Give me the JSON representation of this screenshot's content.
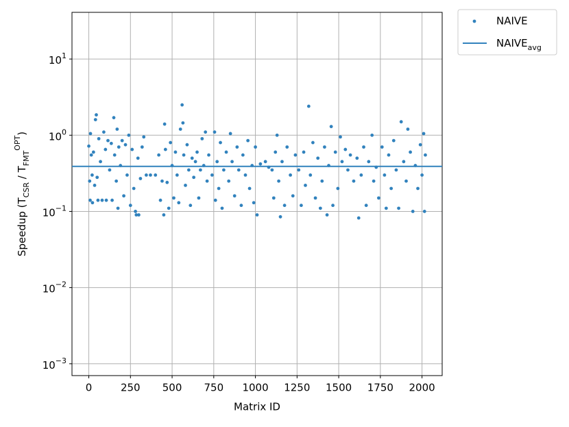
{
  "chart_data": {
    "type": "scatter",
    "x_label": "Matrix ID",
    "y_label": "Speedup (T_{CSR} / T_{FMT}^{OPT})",
    "xlim": [
      -101,
      2121
    ],
    "ylim": [
      0.0007,
      41
    ],
    "log_y": true,
    "grid": true,
    "legend": "outside upper right",
    "xticks": [
      0,
      250,
      500,
      750,
      1000,
      1250,
      1500,
      1750,
      2000
    ],
    "yticks": [
      {
        "value": 0.001,
        "label": "10^{−3}"
      },
      {
        "value": 0.01,
        "label": "10^{−2}"
      },
      {
        "value": 0.1,
        "label": "10^{−1}"
      },
      {
        "value": 1,
        "label": "10^{0}"
      },
      {
        "value": 10,
        "label": "10^{1}"
      }
    ],
    "series": [
      {
        "name": "NAIVE",
        "color": "#3182bd",
        "kind": "points",
        "x": [
          0,
          5,
          8,
          10,
          15,
          20,
          22,
          28,
          35,
          40,
          45,
          50,
          55,
          60,
          70,
          80,
          90,
          100,
          105,
          115,
          125,
          135,
          140,
          150,
          155,
          165,
          170,
          175,
          180,
          190,
          200,
          210,
          220,
          230,
          240,
          250,
          260,
          270,
          280,
          285,
          295,
          300,
          310,
          320,
          330,
          345,
          370,
          400,
          420,
          430,
          440,
          450,
          455,
          460,
          470,
          480,
          490,
          500,
          510,
          520,
          530,
          540,
          550,
          560,
          565,
          570,
          580,
          590,
          600,
          610,
          620,
          630,
          640,
          650,
          660,
          670,
          680,
          690,
          700,
          710,
          720,
          740,
          755,
          760,
          770,
          780,
          790,
          800,
          810,
          825,
          840,
          850,
          860,
          875,
          890,
          900,
          915,
          925,
          940,
          955,
          965,
          980,
          990,
          1000,
          1010,
          1030,
          1060,
          1080,
          1100,
          1110,
          1120,
          1130,
          1140,
          1150,
          1160,
          1175,
          1190,
          1210,
          1225,
          1240,
          1260,
          1275,
          1290,
          1300,
          1320,
          1330,
          1345,
          1360,
          1375,
          1390,
          1400,
          1415,
          1430,
          1440,
          1455,
          1465,
          1480,
          1495,
          1510,
          1520,
          1540,
          1555,
          1570,
          1590,
          1610,
          1620,
          1635,
          1650,
          1665,
          1680,
          1700,
          1710,
          1725,
          1740,
          1760,
          1775,
          1785,
          1800,
          1815,
          1830,
          1845,
          1860,
          1875,
          1890,
          1905,
          1915,
          1930,
          1945,
          1960,
          1975,
          1990,
          2000,
          2010,
          2015,
          2020
        ],
        "values": [
          0.72,
          0.25,
          0.14,
          1.05,
          0.55,
          0.3,
          0.13,
          0.6,
          0.22,
          1.6,
          1.85,
          0.28,
          0.14,
          0.9,
          0.45,
          0.14,
          1.1,
          0.65,
          0.14,
          0.85,
          0.35,
          0.78,
          0.14,
          1.7,
          0.55,
          0.25,
          1.2,
          0.11,
          0.7,
          0.4,
          0.85,
          0.16,
          0.75,
          0.3,
          1.0,
          0.12,
          0.65,
          0.2,
          0.1,
          0.09,
          0.5,
          0.09,
          0.27,
          0.7,
          0.95,
          0.3,
          0.3,
          0.3,
          0.55,
          0.14,
          0.25,
          0.09,
          1.4,
          0.65,
          0.24,
          0.11,
          0.8,
          0.4,
          0.15,
          0.6,
          0.3,
          0.13,
          1.2,
          2.5,
          1.45,
          0.55,
          0.22,
          0.75,
          0.35,
          0.12,
          0.5,
          0.28,
          0.45,
          0.6,
          0.15,
          0.35,
          0.9,
          0.4,
          1.1,
          0.25,
          0.55,
          0.3,
          1.1,
          0.14,
          0.45,
          0.2,
          0.8,
          0.11,
          0.35,
          0.6,
          0.25,
          1.05,
          0.45,
          0.16,
          0.7,
          0.35,
          0.12,
          0.55,
          0.3,
          0.85,
          0.2,
          0.4,
          0.13,
          0.7,
          0.09,
          0.42,
          0.45,
          0.38,
          0.35,
          0.15,
          0.6,
          1.0,
          0.25,
          0.085,
          0.45,
          0.12,
          0.7,
          0.3,
          0.16,
          0.55,
          0.35,
          0.12,
          0.6,
          0.22,
          2.4,
          0.3,
          0.8,
          0.15,
          0.5,
          0.11,
          0.25,
          0.7,
          0.09,
          0.4,
          1.3,
          0.12,
          0.6,
          0.2,
          0.95,
          0.45,
          0.65,
          0.35,
          0.55,
          0.25,
          0.5,
          0.082,
          0.3,
          0.7,
          0.12,
          0.45,
          1.0,
          0.25,
          0.38,
          0.15,
          0.7,
          0.3,
          0.11,
          0.55,
          0.2,
          0.85,
          0.35,
          0.11,
          1.5,
          0.45,
          0.25,
          1.2,
          0.6,
          0.1,
          0.4,
          0.2,
          0.75,
          0.3,
          1.05,
          0.1,
          0.55
        ]
      },
      {
        "name": "NAIVE_{avg}",
        "color": "#3182bd",
        "kind": "line",
        "x": [
          -101,
          2121
        ],
        "values": [
          0.39,
          0.39
        ]
      }
    ]
  }
}
